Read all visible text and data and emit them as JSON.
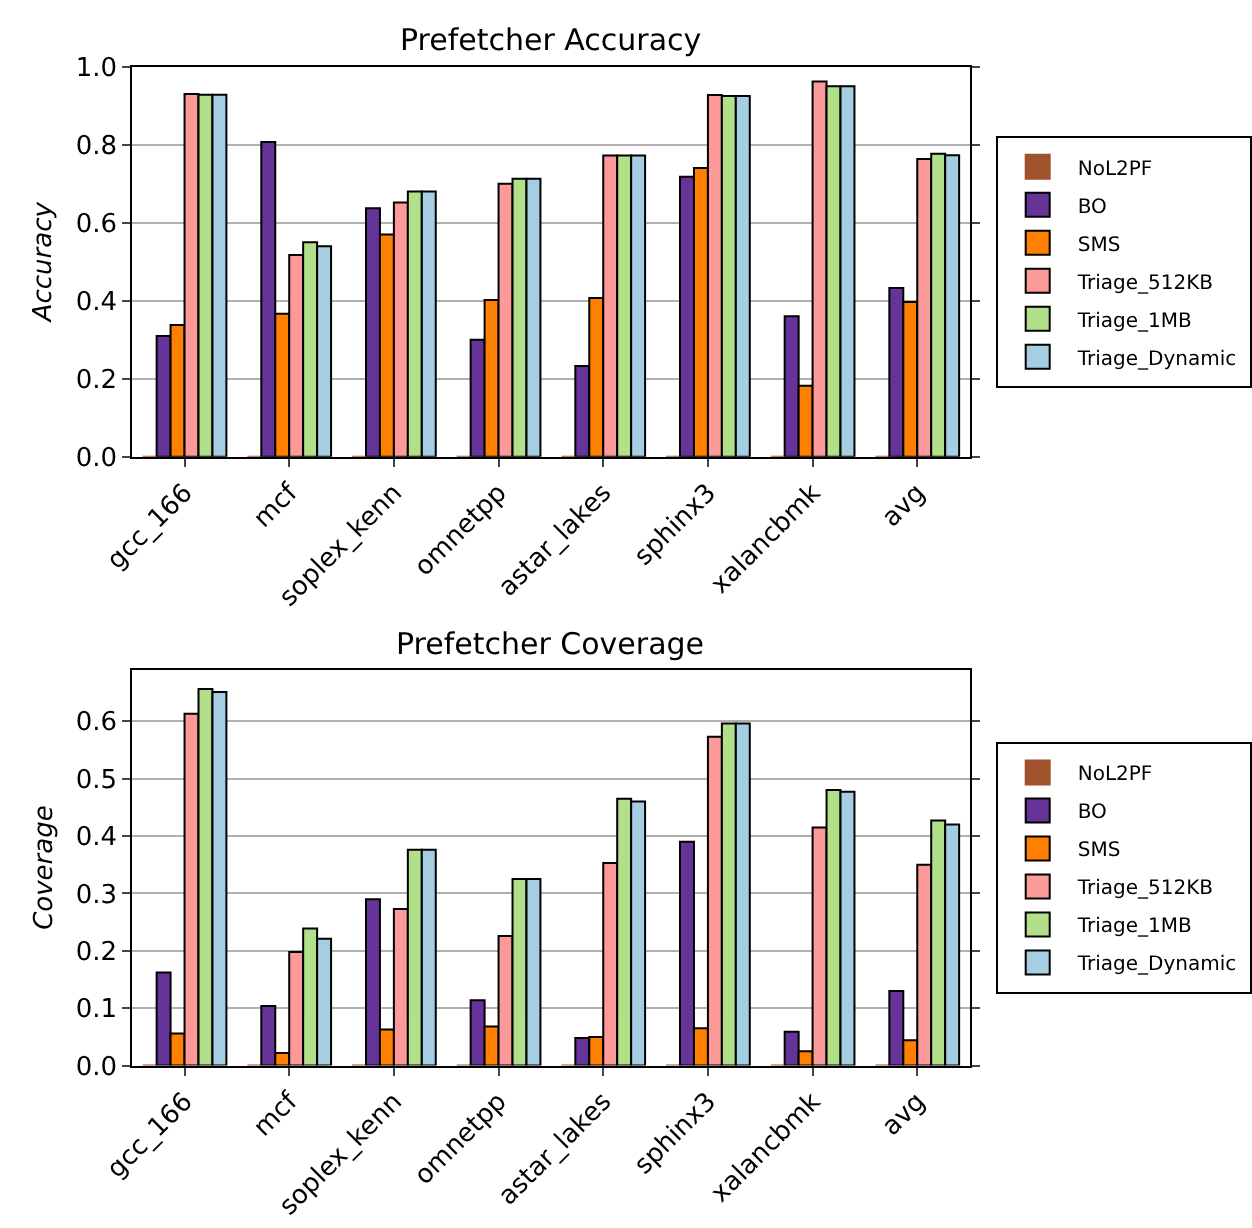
{
  "chart_data": [
    {
      "type": "bar",
      "title": "Prefetcher Accuracy",
      "ylabel": "Accuracy",
      "grid": "y",
      "legend": "right",
      "categories": [
        "gcc_166",
        "mcf",
        "soplex_kenn",
        "omnetpp",
        "astar_lakes",
        "sphinx3",
        "xalancbmk",
        "avg"
      ],
      "ylim": [
        0,
        1.0
      ],
      "yticks": [
        {
          "value": 0,
          "label": "0.0"
        },
        {
          "value": 0.2,
          "label": "0.2"
        },
        {
          "value": 0.4,
          "label": "0.4"
        },
        {
          "value": 0.6,
          "label": "0.6"
        },
        {
          "value": 0.8,
          "label": "0.8"
        },
        {
          "value": 1.0,
          "label": "1.0"
        }
      ],
      "series": [
        {
          "name": "NoL2PF",
          "color": "#a0522d",
          "values": [
            0,
            0,
            0,
            0,
            0,
            0,
            0,
            0
          ]
        },
        {
          "name": "BO",
          "color": "#663399",
          "values": [
            0.31,
            0.807,
            0.637,
            0.3,
            0.233,
            0.718,
            0.36,
            0.433
          ]
        },
        {
          "name": "SMS",
          "color": "#ff7f00",
          "values": [
            0.338,
            0.367,
            0.57,
            0.402,
            0.407,
            0.74,
            0.182,
            0.397
          ]
        },
        {
          "name": "Triage_512KB",
          "color": "#fb9a99",
          "values": [
            0.93,
            0.517,
            0.652,
            0.7,
            0.772,
            0.927,
            0.962,
            0.763
          ]
        },
        {
          "name": "Triage_1MB",
          "color": "#b2df8a",
          "values": [
            0.928,
            0.55,
            0.68,
            0.713,
            0.772,
            0.925,
            0.95,
            0.777
          ]
        },
        {
          "name": "Triage_Dynamic",
          "color": "#a6cee3",
          "values": [
            0.928,
            0.54,
            0.68,
            0.713,
            0.772,
            0.925,
            0.95,
            0.773
          ]
        }
      ]
    },
    {
      "type": "bar",
      "title": "Prefetcher Coverage",
      "ylabel": "Coverage",
      "grid": "y",
      "legend": "right",
      "categories": [
        "gcc_166",
        "mcf",
        "soplex_kenn",
        "omnetpp",
        "astar_lakes",
        "sphinx3",
        "xalancbmk",
        "avg"
      ],
      "ylim": [
        0,
        0.69
      ],
      "yticks": [
        {
          "value": 0,
          "label": "0.0"
        },
        {
          "value": 0.1,
          "label": "0.1"
        },
        {
          "value": 0.2,
          "label": "0.2"
        },
        {
          "value": 0.3,
          "label": "0.3"
        },
        {
          "value": 0.4,
          "label": "0.4"
        },
        {
          "value": 0.5,
          "label": "0.5"
        },
        {
          "value": 0.6,
          "label": "0.6"
        }
      ],
      "series": [
        {
          "name": "NoL2PF",
          "color": "#a0522d",
          "values": [
            0,
            0,
            0,
            0,
            0,
            0,
            0,
            0
          ]
        },
        {
          "name": "BO",
          "color": "#663399",
          "values": [
            0.162,
            0.104,
            0.29,
            0.114,
            0.048,
            0.39,
            0.059,
            0.13
          ]
        },
        {
          "name": "SMS",
          "color": "#ff7f00",
          "values": [
            0.056,
            0.022,
            0.063,
            0.068,
            0.05,
            0.065,
            0.025,
            0.044
          ]
        },
        {
          "name": "Triage_512KB",
          "color": "#fb9a99",
          "values": [
            0.613,
            0.198,
            0.273,
            0.226,
            0.353,
            0.573,
            0.415,
            0.35
          ]
        },
        {
          "name": "Triage_1MB",
          "color": "#b2df8a",
          "values": [
            0.656,
            0.239,
            0.376,
            0.325,
            0.465,
            0.596,
            0.48,
            0.427
          ]
        },
        {
          "name": "Triage_Dynamic",
          "color": "#a6cee3",
          "values": [
            0.651,
            0.221,
            0.376,
            0.325,
            0.46,
            0.596,
            0.477,
            0.42
          ]
        }
      ]
    }
  ]
}
